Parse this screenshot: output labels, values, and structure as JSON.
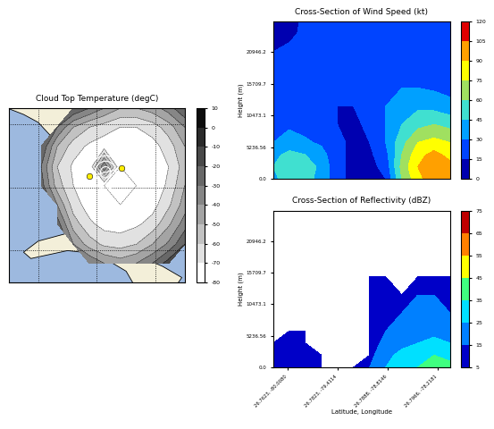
{
  "chart_data": [
    {
      "type": "map",
      "title": "Cloud Top Temperature (degC)",
      "x": [
        -86.0,
        -84.9,
        -83.8,
        -82.7,
        -81.6,
        -80.5,
        -79.5,
        -78.4,
        -77.3,
        -76.2,
        -75.1,
        -74.0
      ],
      "y": [
        31.0,
        29.8,
        28.6,
        27.3,
        26.1,
        24.9,
        23.7,
        22.4,
        21.2,
        20.0
      ],
      "values": [
        [
          null,
          null,
          null,
          null,
          -20,
          -30,
          -40,
          -50,
          -50,
          -45,
          -35,
          -20
        ],
        [
          null,
          null,
          null,
          -30,
          -50,
          -60,
          -65,
          -70,
          -70,
          -65,
          -55,
          -40
        ],
        [
          null,
          null,
          -20,
          -50,
          -65,
          -72,
          -76,
          -78,
          -78,
          -74,
          -65,
          -50
        ],
        [
          null,
          null,
          -30,
          -60,
          -72,
          -78,
          -30,
          -80,
          -79,
          -76,
          -70,
          -55
        ],
        [
          null,
          null,
          -25,
          -55,
          -70,
          -78,
          -80,
          -80,
          -80,
          -77,
          -68,
          -50
        ],
        [
          null,
          null,
          null,
          -40,
          -65,
          -75,
          -79,
          -80,
          -78,
          -74,
          -62,
          -45
        ],
        [
          null,
          null,
          null,
          -25,
          -55,
          -68,
          -74,
          -75,
          -72,
          -66,
          -52,
          -35
        ],
        [
          null,
          null,
          null,
          null,
          -40,
          -55,
          -62,
          -64,
          -60,
          -50,
          -38,
          -20
        ],
        [
          null,
          null,
          null,
          null,
          null,
          -30,
          -40,
          -45,
          -40,
          -30,
          -15,
          null
        ],
        [
          null,
          null,
          null,
          null,
          null,
          null,
          null,
          null,
          null,
          null,
          null,
          null
        ]
      ],
      "section_endpoints": {
        "x": [
          -80.5,
          -78.3
        ],
        "y": [
          26.7,
          27.2
        ]
      },
      "xlim": [
        -86,
        -74
      ],
      "ylim": [
        20,
        31
      ],
      "xticks": [
        -84,
        -80,
        -76
      ],
      "yticks": [
        22,
        26,
        30
      ],
      "grid": true,
      "tick_labels": false,
      "colorbar_range": [
        -80,
        10
      ],
      "colorbar_ticks": [
        -80,
        -70,
        -60,
        -50,
        -40,
        -30,
        -20,
        -10,
        0,
        10
      ]
    },
    {
      "type": "contour",
      "title": "Cross-Section of Wind Speed (kt)",
      "y_label": "Height (m)",
      "x": [
        0,
        9,
        18,
        27,
        36,
        45,
        54,
        63,
        72,
        81,
        90,
        99
      ],
      "y": [
        0,
        2000,
        4000,
        6000,
        9000,
        12000,
        15000,
        18000,
        21000,
        24000,
        26000
      ],
      "values": [
        [
          40,
          55,
          50,
          40,
          20,
          10,
          8,
          15,
          60,
          85,
          100,
          90
        ],
        [
          45,
          60,
          55,
          40,
          20,
          10,
          10,
          20,
          65,
          90,
          105,
          95
        ],
        [
          40,
          50,
          45,
          35,
          20,
          10,
          12,
          25,
          60,
          85,
          95,
          85
        ],
        [
          30,
          35,
          32,
          28,
          18,
          12,
          15,
          30,
          55,
          75,
          80,
          75
        ],
        [
          25,
          28,
          25,
          20,
          15,
          12,
          18,
          30,
          45,
          55,
          60,
          55
        ],
        [
          22,
          25,
          22,
          18,
          15,
          15,
          20,
          30,
          38,
          42,
          40,
          35
        ],
        [
          20,
          22,
          20,
          18,
          18,
          18,
          22,
          28,
          30,
          30,
          28,
          25
        ],
        [
          18,
          20,
          20,
          18,
          20,
          20,
          22,
          22,
          22,
          24,
          22,
          20
        ],
        [
          15,
          18,
          20,
          22,
          22,
          20,
          20,
          18,
          18,
          20,
          20,
          18
        ],
        [
          10,
          12,
          18,
          20,
          20,
          18,
          18,
          16,
          16,
          18,
          18,
          16
        ],
        [
          8,
          10,
          18,
          20,
          20,
          18,
          18,
          16,
          16,
          18,
          18,
          16
        ]
      ],
      "xlim": [
        0,
        99
      ],
      "ylim": [
        0,
        26000
      ],
      "yticks": [
        {
          "value": 0,
          "label": "0.0"
        },
        5236.56,
        10473.1,
        15709.7,
        20946.2
      ],
      "tick_labels": "y",
      "colorbar_range": [
        0,
        120
      ],
      "colorbar_ticks": [
        0,
        15,
        30,
        45,
        60,
        75,
        90,
        105,
        120
      ]
    },
    {
      "type": "contour",
      "title": "Cross-Section of Reflectivity (dBZ)",
      "x_label": "Latitude, Longitude",
      "y_label": "Height (m)",
      "x": [
        0,
        9,
        18,
        27,
        36,
        45,
        54,
        63,
        72,
        81,
        90,
        99
      ],
      "y": [
        0,
        2000,
        4000,
        6000,
        9000,
        12000,
        15000,
        18000,
        21000,
        24000,
        26000
      ],
      "values": [
        [
          12,
          15,
          10,
          8,
          null,
          10,
          15,
          25,
          30,
          35,
          40,
          38
        ],
        [
          10,
          14,
          12,
          8,
          null,
          null,
          12,
          22,
          28,
          32,
          35,
          32
        ],
        [
          8,
          12,
          10,
          null,
          null,
          null,
          10,
          18,
          22,
          25,
          28,
          25
        ],
        [
          null,
          6,
          8,
          null,
          null,
          null,
          10,
          15,
          18,
          20,
          22,
          20
        ],
        [
          null,
          null,
          null,
          null,
          null,
          null,
          12,
          15,
          15,
          18,
          18,
          15
        ],
        [
          null,
          null,
          null,
          null,
          null,
          null,
          12,
          15,
          12,
          15,
          15,
          12
        ],
        [
          null,
          null,
          null,
          null,
          null,
          null,
          8,
          12,
          null,
          10,
          10,
          8
        ],
        [
          null,
          null,
          null,
          null,
          null,
          null,
          null,
          null,
          null,
          null,
          null,
          null
        ],
        [
          null,
          null,
          null,
          null,
          null,
          null,
          null,
          null,
          null,
          null,
          null,
          null
        ],
        [
          null,
          null,
          null,
          null,
          null,
          null,
          null,
          null,
          null,
          null,
          null,
          null
        ],
        [
          null,
          null,
          null,
          null,
          null,
          null,
          null,
          null,
          null,
          null,
          null,
          null
        ]
      ],
      "xlim": [
        0,
        99
      ],
      "ylim": [
        0,
        26000
      ],
      "xticks": [
        {
          "value": 8,
          "label": "26.7623, -80.0080"
        },
        {
          "value": 36,
          "label": "26.7823, -79.4114"
        },
        {
          "value": 64,
          "label": "26.7888, -78.8146"
        },
        {
          "value": 92,
          "label": "26.7966, -78.2181"
        }
      ],
      "yticks": [
        {
          "value": 0,
          "label": "0.0"
        },
        5236.56,
        10473.1,
        15709.7,
        20946.2
      ],
      "colorbar_range": [
        5,
        75
      ],
      "colorbar_ticks": [
        5,
        15,
        25,
        35,
        45,
        55,
        65,
        75
      ]
    }
  ]
}
